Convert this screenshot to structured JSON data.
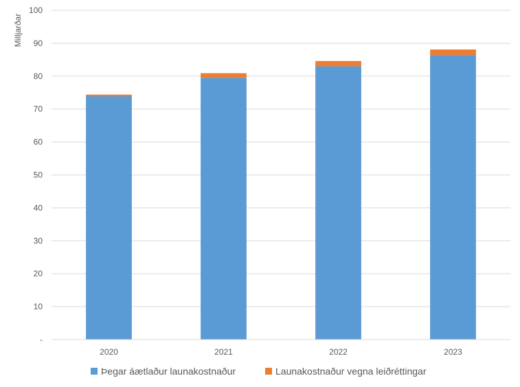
{
  "chart_data": {
    "type": "bar",
    "stacked": true,
    "categories": [
      "2020",
      "2021",
      "2022",
      "2023"
    ],
    "series": [
      {
        "name": "Þegar áætlaður launakostnaður",
        "color": "#5b9bd5",
        "values": [
          73.9,
          79.5,
          83.0,
          86.4
        ]
      },
      {
        "name": "Launakostnaður vegna leiðréttingar",
        "color": "#ed7d31",
        "values": [
          0.5,
          1.4,
          1.6,
          1.7
        ]
      }
    ],
    "ylabel": "Milljarðar",
    "ylim": [
      0,
      100
    ],
    "yticks": [
      {
        "value": 0,
        "label": "-"
      },
      {
        "value": 10,
        "label": "10"
      },
      {
        "value": 20,
        "label": "20"
      },
      {
        "value": 30,
        "label": "30"
      },
      {
        "value": 40,
        "label": "40"
      },
      {
        "value": 50,
        "label": "50"
      },
      {
        "value": 60,
        "label": "60"
      },
      {
        "value": 70,
        "label": "70"
      },
      {
        "value": 80,
        "label": "80"
      },
      {
        "value": 90,
        "label": "90"
      },
      {
        "value": 100,
        "label": "100"
      }
    ],
    "grid": true,
    "legend": "bottom"
  }
}
